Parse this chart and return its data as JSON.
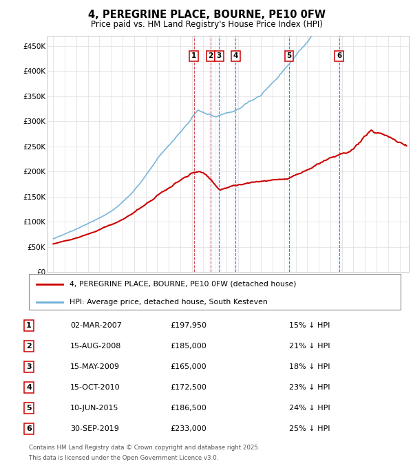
{
  "title": "4, PEREGRINE PLACE, BOURNE, PE10 0FW",
  "subtitle": "Price paid vs. HM Land Registry's House Price Index (HPI)",
  "xlim_start": 1994.5,
  "xlim_end": 2025.8,
  "ylim": [
    0,
    470000
  ],
  "yticks": [
    0,
    50000,
    100000,
    150000,
    200000,
    250000,
    300000,
    350000,
    400000,
    450000
  ],
  "ytick_labels": [
    "£0",
    "£50K",
    "£100K",
    "£150K",
    "£200K",
    "£250K",
    "£300K",
    "£350K",
    "£400K",
    "£450K"
  ],
  "transactions": [
    {
      "num": 1,
      "date": "02-MAR-2007",
      "year": 2007.17,
      "price": 197950,
      "price_str": "£197,950",
      "pct": "15%"
    },
    {
      "num": 2,
      "date": "15-AUG-2008",
      "year": 2008.62,
      "price": 185000,
      "price_str": "£185,000",
      "pct": "21%"
    },
    {
      "num": 3,
      "date": "15-MAY-2009",
      "year": 2009.37,
      "price": 165000,
      "price_str": "£165,000",
      "pct": "18%"
    },
    {
      "num": 4,
      "date": "15-OCT-2010",
      "year": 2010.79,
      "price": 172500,
      "price_str": "£172,500",
      "pct": "23%"
    },
    {
      "num": 5,
      "date": "10-JUN-2015",
      "year": 2015.44,
      "price": 186500,
      "price_str": "£186,500",
      "pct": "24%"
    },
    {
      "num": 6,
      "date": "30-SEP-2019",
      "year": 2019.75,
      "price": 233000,
      "price_str": "£233,000",
      "pct": "25%"
    }
  ],
  "legend_line1": "4, PEREGRINE PLACE, BOURNE, PE10 0FW (detached house)",
  "legend_line2": "HPI: Average price, detached house, South Kesteven",
  "footer_line1": "Contains HM Land Registry data © Crown copyright and database right 2025.",
  "footer_line2": "This data is licensed under the Open Government Licence v3.0.",
  "hpi_color": "#6baed6",
  "price_color": "#cc0000",
  "box_color": "#cc0000",
  "shade_color": "#ddeeff",
  "dash_color": "#cc0000",
  "bg_color": "#ffffff",
  "grid_color": "#dddddd"
}
